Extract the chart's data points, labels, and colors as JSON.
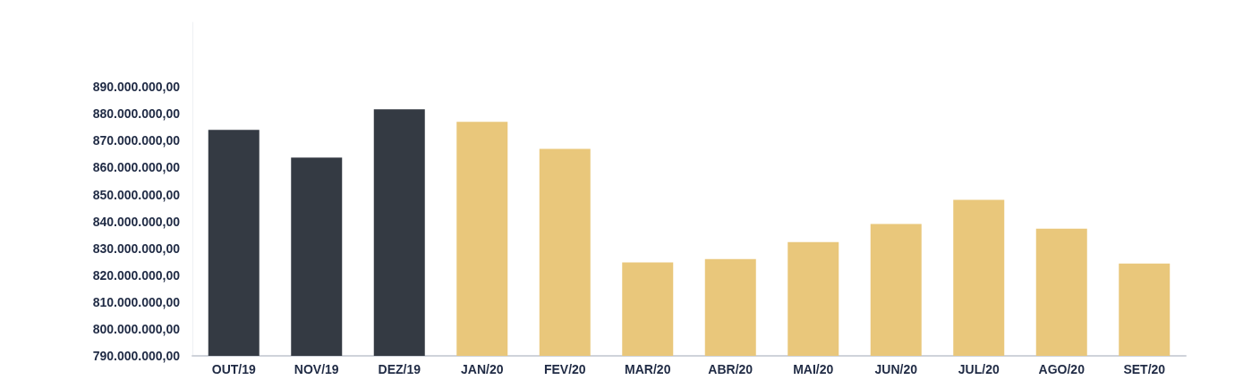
{
  "chart_data": {
    "type": "bar",
    "categories": [
      "OUT/19",
      "NOV/19",
      "DEZ/19",
      "JAN/20",
      "FEV/20",
      "MAR/20",
      "ABR/20",
      "MAI/20",
      "JUN/20",
      "JUL/20",
      "AGO/20",
      "SET/20"
    ],
    "values": [
      874000000,
      863700000,
      881700000,
      877000000,
      867000000,
      824700000,
      826000000,
      832300000,
      839000000,
      848000000,
      837300000,
      824300000
    ],
    "colors": [
      "#343a43",
      "#343a43",
      "#343a43",
      "#e9c77b",
      "#e9c77b",
      "#e9c77b",
      "#e9c77b",
      "#e9c77b",
      "#e9c77b",
      "#e9c77b",
      "#e9c77b",
      "#e9c77b"
    ],
    "ylim": [
      790000000,
      914000000
    ],
    "yticks": [
      {
        "value": 790000000,
        "label": "790.000.000,00"
      },
      {
        "value": 800000000,
        "label": "800.000.000,00"
      },
      {
        "value": 810000000,
        "label": "810.000.000,00"
      },
      {
        "value": 820000000,
        "label": "820.000.000,00"
      },
      {
        "value": 830000000,
        "label": "830.000.000,00"
      },
      {
        "value": 840000000,
        "label": "840.000.000,00"
      },
      {
        "value": 850000000,
        "label": "850.000.000,00"
      },
      {
        "value": 860000000,
        "label": "860.000.000,00"
      },
      {
        "value": 870000000,
        "label": "870.000.000,00"
      },
      {
        "value": 880000000,
        "label": "880.000.000,00"
      },
      {
        "value": 890000000,
        "label": "890.000.000,00"
      }
    ],
    "grid": false
  }
}
